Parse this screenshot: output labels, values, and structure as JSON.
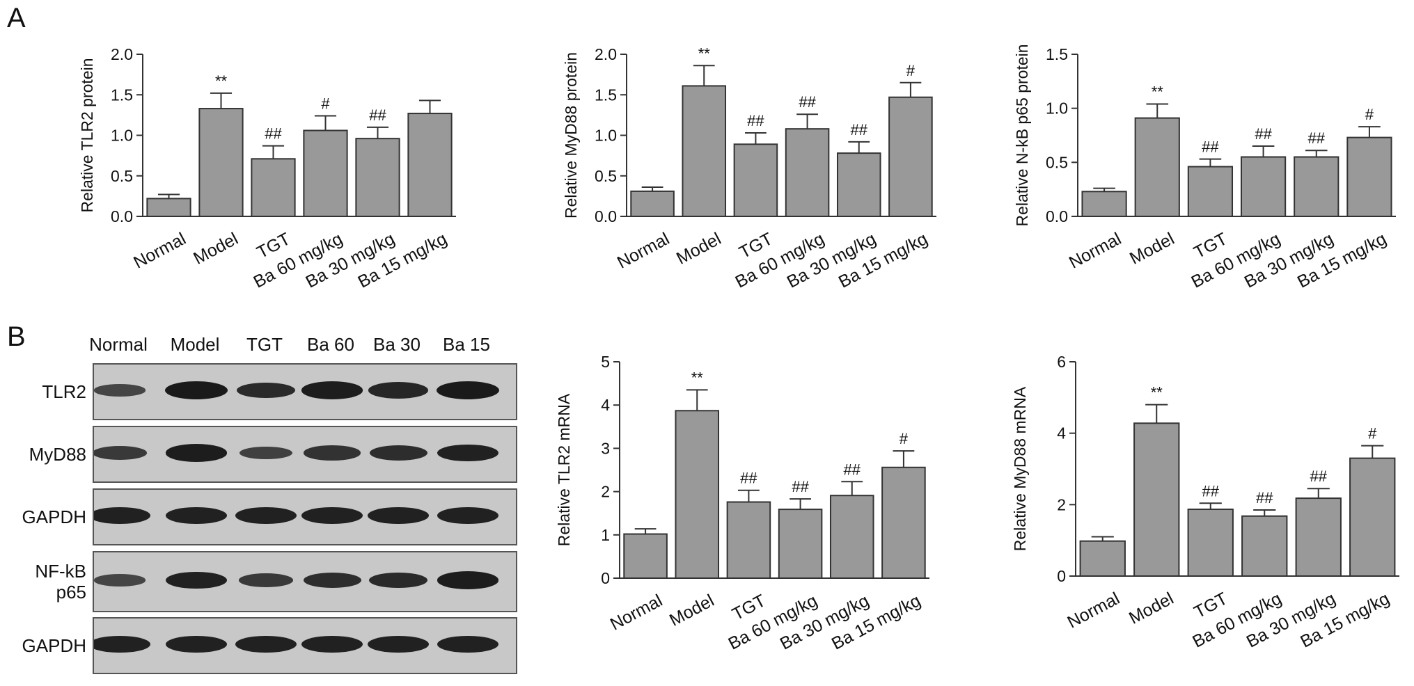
{
  "panel_labels": {
    "a": "A",
    "b": "B"
  },
  "colors": {
    "bar_fill": "#999999",
    "bar_stroke": "#333333",
    "axis": "#333333",
    "blot_bg": "#c8c8c8",
    "band": "#1a1a1a"
  },
  "chart_data": [
    {
      "type": "bar",
      "ylabel": "Relative TLR2 protein",
      "categories": [
        "Normal",
        "Model",
        "TGT",
        "Ba 60 mg/kg",
        "Ba 30 mg/kg",
        "Ba 15 mg/kg"
      ],
      "values": [
        0.22,
        1.33,
        0.71,
        1.06,
        0.96,
        1.27
      ],
      "errors": [
        0.05,
        0.19,
        0.16,
        0.18,
        0.14,
        0.16
      ],
      "annotations": [
        "",
        "**",
        "##",
        "#",
        "##",
        ""
      ],
      "ylim": [
        0,
        2.0
      ],
      "yticks": [
        "0.0",
        "0.5",
        "1.0",
        "1.5",
        "2.0"
      ],
      "ytick_values": [
        0,
        0.5,
        1.0,
        1.5,
        2.0
      ]
    },
    {
      "type": "bar",
      "ylabel": "Relative MyD88 protein",
      "categories": [
        "Normal",
        "Model",
        "TGT",
        "Ba 60 mg/kg",
        "Ba 30 mg/kg",
        "Ba 15 mg/kg"
      ],
      "values": [
        0.31,
        1.61,
        0.89,
        1.08,
        0.78,
        1.47
      ],
      "errors": [
        0.05,
        0.25,
        0.14,
        0.18,
        0.14,
        0.18
      ],
      "annotations": [
        "",
        "**",
        "##",
        "##",
        "##",
        "#"
      ],
      "ylim": [
        0,
        2.0
      ],
      "yticks": [
        "0.0",
        "0.5",
        "1.0",
        "1.5",
        "2.0"
      ],
      "ytick_values": [
        0,
        0.5,
        1.0,
        1.5,
        2.0
      ]
    },
    {
      "type": "bar",
      "ylabel": "Relative N-kB p65  protein",
      "categories": [
        "Normal",
        "Model",
        "TGT",
        "Ba 60 mg/kg",
        "Ba 30 mg/kg",
        "Ba 15 mg/kg"
      ],
      "values": [
        0.23,
        0.91,
        0.46,
        0.55,
        0.55,
        0.73
      ],
      "errors": [
        0.03,
        0.13,
        0.07,
        0.1,
        0.06,
        0.1
      ],
      "annotations": [
        "",
        "**",
        "##",
        "##",
        "##",
        "#"
      ],
      "ylim": [
        0,
        1.5
      ],
      "yticks": [
        "0.0",
        "0.5",
        "1.0",
        "1.5"
      ],
      "ytick_values": [
        0,
        0.5,
        1.0,
        1.5
      ]
    },
    {
      "type": "bar",
      "ylabel": "Relative TLR2 mRNA",
      "categories": [
        "Normal",
        "Model",
        "TGT",
        "Ba 60 mg/kg",
        "Ba 30 mg/kg",
        "Ba 15 mg/kg"
      ],
      "values": [
        1.02,
        3.87,
        1.76,
        1.59,
        1.91,
        2.56
      ],
      "errors": [
        0.12,
        0.48,
        0.27,
        0.24,
        0.32,
        0.38
      ],
      "annotations": [
        "",
        "**",
        "##",
        "##",
        "##",
        "#"
      ],
      "ylim": [
        0,
        5
      ],
      "yticks": [
        "0",
        "1",
        "2",
        "3",
        "4",
        "5"
      ],
      "ytick_values": [
        0,
        1,
        2,
        3,
        4,
        5
      ]
    },
    {
      "type": "bar",
      "ylabel": "Relative MyD88 mRNA",
      "categories": [
        "Normal",
        "Model",
        "TGT",
        "Ba 60 mg/kg",
        "Ba 30 mg/kg",
        "Ba 15 mg/kg"
      ],
      "values": [
        0.98,
        4.28,
        1.87,
        1.68,
        2.18,
        3.3
      ],
      "errors": [
        0.12,
        0.52,
        0.17,
        0.17,
        0.27,
        0.35
      ],
      "annotations": [
        "",
        "**",
        "##",
        "##",
        "##",
        "#"
      ],
      "ylim": [
        0,
        6
      ],
      "yticks": [
        "0",
        "2",
        "4",
        "6"
      ],
      "ytick_values": [
        0,
        2,
        4,
        6
      ]
    }
  ],
  "western_blot": {
    "lanes": [
      "Normal",
      "Model",
      "TGT",
      "Ba 60",
      "Ba 30",
      "Ba 15"
    ],
    "rows": [
      {
        "label": "TLR2",
        "intensities": [
          0.45,
          1.0,
          0.8,
          0.95,
          0.85,
          1.0
        ]
      },
      {
        "label": "MyD88",
        "intensities": [
          0.6,
          0.95,
          0.5,
          0.7,
          0.75,
          0.9
        ]
      },
      {
        "label": "GAPDH",
        "intensities": [
          0.9,
          0.9,
          0.9,
          0.9,
          0.9,
          0.9
        ]
      },
      {
        "label": "NF-kB\np65",
        "intensities": [
          0.45,
          0.9,
          0.6,
          0.75,
          0.8,
          0.95
        ]
      },
      {
        "label": "GAPDH",
        "intensities": [
          0.9,
          0.9,
          0.9,
          0.9,
          0.9,
          0.9
        ]
      }
    ]
  }
}
